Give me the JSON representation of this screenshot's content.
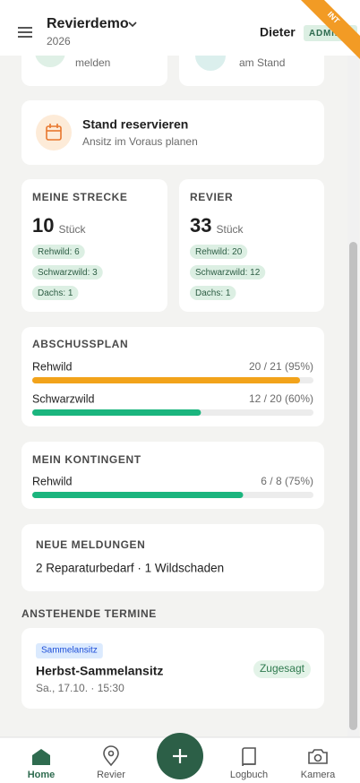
{
  "header": {
    "title": "Revierdemo",
    "subtitle": "2026",
    "user": "Dieter",
    "role": "ADMIN",
    "ribbon": "INT"
  },
  "quick_actions": [
    {
      "label": "melden"
    },
    {
      "label": "am Stand"
    }
  ],
  "reserve": {
    "title": "Stand reservieren",
    "subtitle": "Ansitz im Voraus planen"
  },
  "stats": [
    {
      "title": "MEINE STRECKE",
      "count": 10,
      "unit": "Stück",
      "chips": [
        "Rehwild: 6",
        "Schwarzwild: 3",
        "Dachs: 1"
      ]
    },
    {
      "title": "REVIER",
      "count": 33,
      "unit": "Stück",
      "chips": [
        "Rehwild: 20",
        "Schwarzwild: 12",
        "Dachs: 1"
      ]
    }
  ],
  "abschussplan": {
    "title": "ABSCHUSSPLAN",
    "rows": [
      {
        "name": "Rehwild",
        "label": "20 / 21 (95%)",
        "value": 20,
        "max": 21,
        "color": "#f2a31b"
      },
      {
        "name": "Schwarzwild",
        "label": "12 / 20 (60%)",
        "value": 12,
        "max": 20,
        "color": "#1bb57e"
      }
    ]
  },
  "kontingent": {
    "title": "MEIN KONTINGENT",
    "rows": [
      {
        "name": "Rehwild",
        "label": "6 / 8 (75%)",
        "value": 6,
        "max": 8,
        "color": "#1bb57e"
      }
    ]
  },
  "meldungen": {
    "title": "NEUE MELDUNGEN",
    "text": "2 Reparaturbedarf · 1 Wildschaden"
  },
  "termine": {
    "title": "ANSTEHENDE TERMINE",
    "items": [
      {
        "tag": "Sammelansitz",
        "title": "Herbst-Sammelansitz",
        "date": "Sa., 17.10. · 15:30",
        "status": "Zugesagt"
      }
    ]
  },
  "nav": [
    {
      "label": "Home",
      "active": true
    },
    {
      "label": "Revier"
    },
    {
      "label": "Logbuch"
    },
    {
      "label": "Kamera"
    }
  ]
}
